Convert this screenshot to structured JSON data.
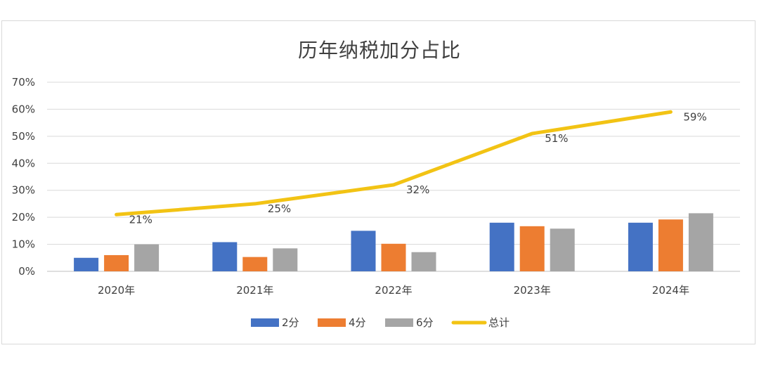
{
  "chart_data": {
    "type": "bar",
    "title": "历年纳税加分占比",
    "categories": [
      "2020年",
      "2021年",
      "2022年",
      "2023年",
      "2024年"
    ],
    "y_ticks": [
      "0%",
      "10%",
      "20%",
      "30%",
      "40%",
      "50%",
      "60%",
      "70%"
    ],
    "ylim": [
      0,
      70
    ],
    "grid": true,
    "legend_position": "bottom",
    "series": [
      {
        "name": "2分",
        "type": "bar",
        "color": "#4472C4",
        "values": [
          5,
          10.8,
          15,
          18,
          18
        ]
      },
      {
        "name": "4分",
        "type": "bar",
        "color": "#ED7D31",
        "values": [
          6,
          5.3,
          10.2,
          16.7,
          19.2
        ]
      },
      {
        "name": "6分",
        "type": "bar",
        "color": "#A5A5A5",
        "values": [
          10,
          8.5,
          7.1,
          15.8,
          21.5
        ]
      },
      {
        "name": "总计",
        "type": "line",
        "color": "#F2C314",
        "values": [
          21,
          25,
          32,
          51,
          59
        ],
        "labels": [
          "21%",
          "25%",
          "32%",
          "51%",
          "59%"
        ]
      }
    ]
  }
}
